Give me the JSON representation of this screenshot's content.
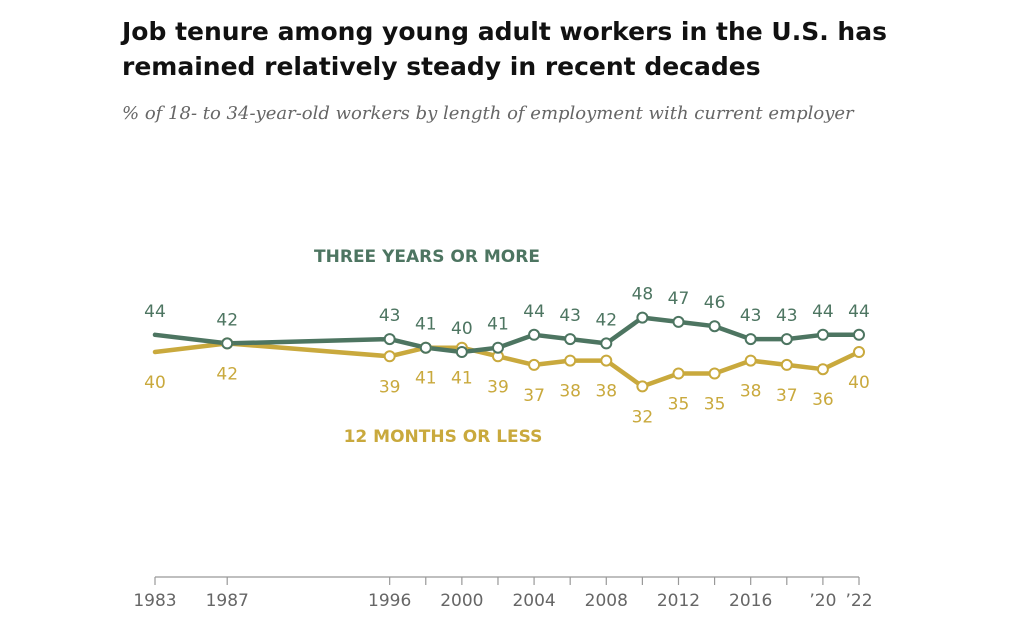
{
  "chart_data": {
    "type": "line",
    "title": "Job tenure among young adult workers in the U.S. has remained relatively steady in recent decades",
    "subtitle": "% of 18- to 34-year-old workers by length of employment with current employer",
    "x": [
      1983,
      1987,
      1996,
      1998,
      2000,
      2002,
      2004,
      2006,
      2008,
      2010,
      2012,
      2014,
      2016,
      2018,
      2020,
      2022
    ],
    "series": [
      {
        "name": "THREE YEARS OR MORE",
        "color": "#4d7561",
        "values": [
          44,
          42,
          43,
          41,
          40,
          41,
          44,
          43,
          42,
          48,
          47,
          46,
          43,
          43,
          44,
          44
        ],
        "labels_above": [
          true,
          true,
          true,
          true,
          true,
          true,
          true,
          true,
          true,
          true,
          true,
          true,
          true,
          true,
          true,
          true
        ]
      },
      {
        "name": "12 MONTHS OR LESS",
        "color": "#c9a93d",
        "values": [
          40,
          42,
          39,
          41,
          41,
          39,
          37,
          38,
          38,
          32,
          35,
          35,
          38,
          37,
          36,
          40
        ],
        "labels_above": [
          false,
          false,
          false,
          false,
          false,
          false,
          false,
          false,
          false,
          false,
          false,
          false,
          false,
          false,
          false,
          false
        ]
      }
    ],
    "x_ticks": [
      {
        "year": 1983,
        "label": "1983"
      },
      {
        "year": 1987,
        "label": "1987"
      },
      {
        "year": 1996,
        "label": "1996"
      },
      {
        "year": 2000,
        "label": "2000"
      },
      {
        "year": 2004,
        "label": "2004"
      },
      {
        "year": 2008,
        "label": "2008"
      },
      {
        "year": 2012,
        "label": "2012"
      },
      {
        "year": 2016,
        "label": "2016"
      },
      {
        "year": 2020,
        "label": "’20"
      },
      {
        "year": 2022,
        "label": "’22"
      }
    ],
    "xlim": [
      1983,
      2022
    ],
    "xlabel": "",
    "ylabel": "",
    "grid": false,
    "legend": "inline"
  }
}
